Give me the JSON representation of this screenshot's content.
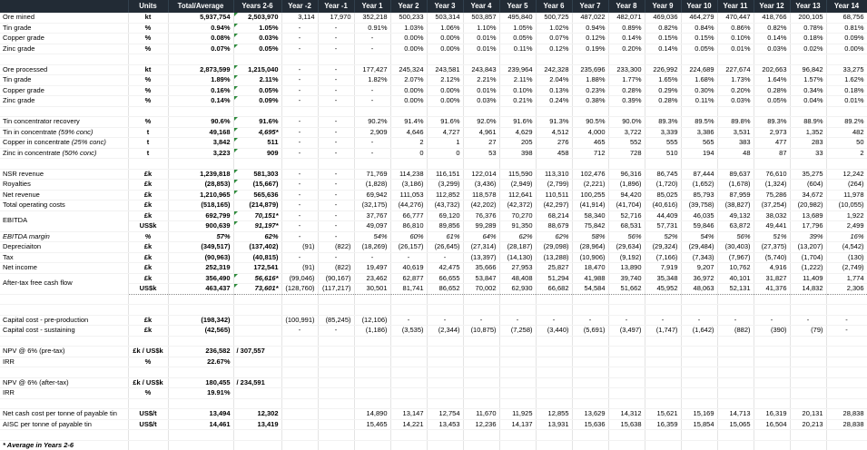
{
  "sheet": {
    "colors": {
      "header_bg": "#222B35",
      "header_text": "#FFFFFF",
      "flag_green": "#2E8B3C",
      "grid_line": "#E4E4E4",
      "dotted_line": "#8A8A8A"
    },
    "columns": [
      "Units",
      "Total/Average",
      "Years 2-6",
      "Year -2",
      "Year -1",
      "Year 1",
      "Year 2",
      "Year 3",
      "Year 4",
      "Year 5",
      "Year 6",
      "Year 7",
      "Year 8",
      "Year 9",
      "Year 10",
      "Year 11",
      "Year 12",
      "Year 13",
      "Year 14"
    ],
    "footnote": "* Average in Years 2-6",
    "rows": [
      {
        "name": "ore-mined",
        "label": "Ore mined",
        "unit": "kt",
        "total": "5,937,754",
        "y26": "2,503,970",
        "flag": 1,
        "vals": [
          "3,114",
          "17,970",
          "352,218",
          "500,233",
          "503,314",
          "503,857",
          "495,840",
          "500,725",
          "487,022",
          "482,071",
          "469,036",
          "464,279",
          "470,447",
          "418,766",
          "200,105",
          "68,756"
        ]
      },
      {
        "name": "tin-grade-mined",
        "label": "Tin grade",
        "unit": "%",
        "total": "0.94%",
        "y26": "1.05%",
        "flag": 1,
        "vals": [
          "-",
          "-",
          "0.91%",
          "1.03%",
          "1.06%",
          "1.10%",
          "1.05%",
          "1.02%",
          "0.94%",
          "0.89%",
          "0.82%",
          "0.84%",
          "0.86%",
          "0.82%",
          "0.78%",
          "0.81%"
        ]
      },
      {
        "name": "copper-grade-mined",
        "label": "Copper grade",
        "unit": "%",
        "total": "0.08%",
        "y26": "0.03%",
        "flag": 1,
        "vals": [
          "-",
          "-",
          "-",
          "0.00%",
          "0.00%",
          "0.01%",
          "0.05%",
          "0.07%",
          "0.12%",
          "0.14%",
          "0.15%",
          "0.15%",
          "0.10%",
          "0.14%",
          "0.18%",
          "0.09%"
        ]
      },
      {
        "name": "zinc-grade-mined",
        "label": "Zinc grade",
        "unit": "%",
        "total": "0.07%",
        "y26": "0.05%",
        "flag": 1,
        "vals": [
          "-",
          "-",
          "-",
          "0.00%",
          "0.00%",
          "0.01%",
          "0.11%",
          "0.12%",
          "0.19%",
          "0.20%",
          "0.14%",
          "0.05%",
          "0.01%",
          "0.03%",
          "0.02%",
          "0.00%"
        ]
      },
      {
        "name": "spacer-1"
      },
      {
        "name": "ore-processed",
        "label": "Ore processed",
        "unit": "kt",
        "total": "2,873,599",
        "y26": "1,215,040",
        "flag": 1,
        "vals": [
          "-",
          "-",
          "177,427",
          "245,324",
          "243,581",
          "243,843",
          "239,964",
          "242,328",
          "235,696",
          "233,300",
          "226,992",
          "224,689",
          "227,674",
          "202,663",
          "96,842",
          "33,275"
        ]
      },
      {
        "name": "tin-grade-processed",
        "label": "Tin grade",
        "unit": "%",
        "total": "1.89%",
        "y26": "2.11%",
        "flag": 1,
        "vals": [
          "-",
          "-",
          "1.82%",
          "2.07%",
          "2.12%",
          "2.21%",
          "2.11%",
          "2.04%",
          "1.88%",
          "1.77%",
          "1.65%",
          "1.68%",
          "1.73%",
          "1.64%",
          "1.57%",
          "1.62%"
        ]
      },
      {
        "name": "copper-grade-processed",
        "label": "Copper grade",
        "unit": "%",
        "total": "0.16%",
        "y26": "0.05%",
        "flag": 1,
        "vals": [
          "-",
          "-",
          "-",
          "0.00%",
          "0.00%",
          "0.01%",
          "0.10%",
          "0.13%",
          "0.23%",
          "0.28%",
          "0.29%",
          "0.30%",
          "0.20%",
          "0.28%",
          "0.34%",
          "0.18%"
        ]
      },
      {
        "name": "zinc-grade-processed",
        "label": "Zinc grade",
        "unit": "%",
        "total": "0.14%",
        "y26": "0.09%",
        "flag": 1,
        "vals": [
          "-",
          "-",
          "-",
          "0.00%",
          "0.00%",
          "0.03%",
          "0.21%",
          "0.24%",
          "0.38%",
          "0.39%",
          "0.28%",
          "0.11%",
          "0.03%",
          "0.05%",
          "0.04%",
          "0.01%"
        ]
      },
      {
        "name": "spacer-2"
      },
      {
        "name": "tin-concentrator-recovery",
        "label": "Tin concentrator recovery",
        "unit": "%",
        "total": "90.6%",
        "y26": "91.6%",
        "flag": 1,
        "vals": [
          "-",
          "-",
          "90.2%",
          "91.4%",
          "91.6%",
          "92.0%",
          "91.6%",
          "91.3%",
          "90.5%",
          "90.0%",
          "89.3%",
          "89.5%",
          "89.8%",
          "89.3%",
          "88.9%",
          "89.2%"
        ]
      },
      {
        "name": "tin-in-concentrate",
        "label": "Tin in concentrate",
        "suffix": "(59% conc)",
        "unit": "t",
        "total": "49,168",
        "y26": "4,695*",
        "y26i": 1,
        "flag": 1,
        "vals": [
          "-",
          "-",
          "2,909",
          "4,646",
          "4,727",
          "4,961",
          "4,629",
          "4,512",
          "4,000",
          "3,722",
          "3,339",
          "3,386",
          "3,531",
          "2,973",
          "1,352",
          "482"
        ]
      },
      {
        "name": "copper-in-concentrate",
        "label": "Copper in concentrate",
        "suffix": "(25% conc)",
        "unit": "t",
        "total": "3,842",
        "y26": "511",
        "flag": 1,
        "vals": [
          "-",
          "-",
          "-",
          "2",
          "1",
          "27",
          "205",
          "276",
          "465",
          "552",
          "555",
          "565",
          "383",
          "477",
          "283",
          "50"
        ]
      },
      {
        "name": "zinc-in-concentrate",
        "label": "Zinc in concentrate",
        "suffix": "(50% conc)",
        "unit": "t",
        "total": "3,223",
        "y26": "909",
        "flag": 1,
        "vals": [
          "-",
          "-",
          "-",
          "0",
          "0",
          "53",
          "398",
          "458",
          "712",
          "728",
          "510",
          "194",
          "48",
          "87",
          "33",
          "2"
        ]
      },
      {
        "name": "spacer-3"
      },
      {
        "name": "nsr-revenue",
        "label": "NSR revenue",
        "unit": "£k",
        "total": "1,239,818",
        "y26": "581,303",
        "flag": 1,
        "vals": [
          "-",
          "-",
          "71,769",
          "114,238",
          "116,151",
          "122,014",
          "115,590",
          "113,310",
          "102,476",
          "96,316",
          "86,745",
          "87,444",
          "89,637",
          "76,610",
          "35,275",
          "12,242"
        ]
      },
      {
        "name": "royalties",
        "label": "Royalties",
        "unit": "£k",
        "total": "(28,853)",
        "y26": "(15,667)",
        "flag": 1,
        "vals": [
          "-",
          "-",
          "(1,828)",
          "(3,186)",
          "(3,299)",
          "(3,436)",
          "(2,949)",
          "(2,799)",
          "(2,221)",
          "(1,896)",
          "(1,720)",
          "(1,652)",
          "(1,678)",
          "(1,324)",
          "(604)",
          "(264)"
        ]
      },
      {
        "name": "net-revenue",
        "label": "Net revenue",
        "unit": "£k",
        "total": "1,210,965",
        "y26": "565,636",
        "flag": 1,
        "vals": [
          "-",
          "-",
          "69,942",
          "111,053",
          "112,852",
          "118,578",
          "112,641",
          "110,511",
          "100,255",
          "94,420",
          "85,025",
          "85,793",
          "87,959",
          "75,286",
          "34,672",
          "11,978"
        ]
      },
      {
        "name": "total-operating-costs",
        "label": "Total operating costs",
        "unit": "£k",
        "total": "(518,165)",
        "y26": "(214,879)",
        "vals": [
          "-",
          "-",
          "(32,175)",
          "(44,276)",
          "(43,732)",
          "(42,202)",
          "(42,372)",
          "(42,297)",
          "(41,914)",
          "(41,704)",
          "(40,616)",
          "(39,758)",
          "(38,827)",
          "(37,254)",
          "(20,982)",
          "(10,055)"
        ]
      },
      {
        "name": "ebitda-gbp",
        "label": "EBITDA",
        "span": 2,
        "unit": "£k",
        "total": "692,799",
        "y26": "70,151*",
        "y26i": 1,
        "flag": 1,
        "cls": "dt",
        "vals": [
          "-",
          "-",
          "37,767",
          "66,777",
          "69,120",
          "76,376",
          "70,270",
          "68,214",
          "58,340",
          "52,716",
          "44,409",
          "46,035",
          "49,132",
          "38,032",
          "13,689",
          "1,922"
        ]
      },
      {
        "name": "ebitda-usd",
        "skip": 1,
        "unit": "US$k",
        "total": "900,639",
        "y26": "91,197*",
        "y26i": 1,
        "flag": 1,
        "vals": [
          "-",
          "-",
          "49,097",
          "86,810",
          "89,856",
          "99,289",
          "91,350",
          "88,679",
          "75,842",
          "68,531",
          "57,731",
          "59,846",
          "63,872",
          "49,441",
          "17,796",
          "2,499"
        ]
      },
      {
        "name": "ebitda-margin",
        "label": "EBITDA margin",
        "unit": "%",
        "italic": 1,
        "total": "57%",
        "y26": "62%",
        "vals": [
          "-",
          "-",
          "54%",
          "60%",
          "61%",
          "64%",
          "62%",
          "62%",
          "58%",
          "56%",
          "52%",
          "54%",
          "56%",
          "51%",
          "39%",
          "16%"
        ]
      },
      {
        "name": "depreciation",
        "label": "Depreciaiton",
        "unit": "£k",
        "total": "(349,517)",
        "y26": "(137,402)",
        "cls": "dt",
        "vals": [
          "(91)",
          "(822)",
          "(18,269)",
          "(26,157)",
          "(26,645)",
          "(27,314)",
          "(28,187)",
          "(29,098)",
          "(28,964)",
          "(29,634)",
          "(29,324)",
          "(29,484)",
          "(30,403)",
          "(27,375)",
          "(13,207)",
          "(4,542)"
        ]
      },
      {
        "name": "tax",
        "label": "Tax",
        "unit": "£k",
        "total": "(90,963)",
        "y26": "(40,815)",
        "vals": [
          "-",
          "-",
          "-",
          "-",
          "-",
          "(13,397)",
          "(14,130)",
          "(13,288)",
          "(10,906)",
          "(9,192)",
          "(7,166)",
          "(7,343)",
          "(7,967)",
          "(5,740)",
          "(1,704)",
          "(130)"
        ]
      },
      {
        "name": "net-income",
        "label": "Net income",
        "unit": "£k",
        "total": "252,319",
        "y26": "172,541",
        "vals": [
          "(91)",
          "(822)",
          "19,497",
          "40,619",
          "42,475",
          "35,666",
          "27,953",
          "25,827",
          "18,470",
          "13,890",
          "7,919",
          "9,207",
          "10,762",
          "4,916",
          "(1,222)",
          "(2,749)"
        ]
      },
      {
        "name": "after-tax-fcf-gbp",
        "label": "After-tax free cash flow",
        "span": 2,
        "unit": "£k",
        "total": "356,490",
        "y26": "56,616*",
        "y26i": 1,
        "flag": 1,
        "cls": "dt",
        "vals": [
          "(99,046)",
          "(90,167)",
          "23,462",
          "62,877",
          "66,655",
          "53,847",
          "48,408",
          "51,294",
          "41,988",
          "39,740",
          "35,348",
          "36,972",
          "40,101",
          "31,827",
          "11,409",
          "1,774"
        ]
      },
      {
        "name": "after-tax-fcf-usd",
        "skip": 1,
        "unit": "US$k",
        "total": "463,437",
        "y26": "73,601*",
        "y26i": 1,
        "flag": 1,
        "cls": "db",
        "vals": [
          "(128,760)",
          "(117,217)",
          "30,501",
          "81,741",
          "86,652",
          "70,002",
          "62,930",
          "66,682",
          "54,584",
          "51,662",
          "45,952",
          "48,063",
          "52,131",
          "41,376",
          "14,832",
          "2,306"
        ]
      },
      {
        "name": "spacer-4"
      },
      {
        "name": "spacer-5"
      },
      {
        "name": "capex-pre-production",
        "label": "Capital cost - pre-production",
        "unit": "£k",
        "total": "(198,342)",
        "y26": "",
        "vals": [
          "(100,991)",
          "(85,245)",
          "(12,106)",
          "-",
          "-",
          "-",
          "-",
          "-",
          "-",
          "-",
          "-",
          "-",
          "-",
          "-",
          "-",
          "-"
        ]
      },
      {
        "name": "capex-sustaining",
        "label": "Capital cost - sustaining",
        "unit": "£k",
        "total": "(42,565)",
        "y26": "",
        "vals": [
          "-",
          "-",
          "(1,186)",
          "(3,535)",
          "(2,344)",
          "(10,875)",
          "(7,258)",
          "(3,440)",
          "(5,691)",
          "(3,497)",
          "(1,747)",
          "(1,642)",
          "(882)",
          "(390)",
          "(79)",
          "-"
        ]
      },
      {
        "name": "spacer-6"
      },
      {
        "name": "npv-pre-tax",
        "label": "NPV @ 6% (pre-tax)",
        "unit": "£k / US$k",
        "total": "236,582",
        "y26": "/ 307,557",
        "y26left": 1
      },
      {
        "name": "irr-pre-tax",
        "label": "IRR",
        "unit": "%",
        "total": "22.67%",
        "y26": ""
      },
      {
        "name": "spacer-7"
      },
      {
        "name": "npv-after-tax",
        "label": "NPV @ 6% (after-tax)",
        "unit": "£k / US$k",
        "total": "180,455",
        "y26": "/ 234,591",
        "y26left": 1
      },
      {
        "name": "irr-after-tax",
        "label": "IRR",
        "unit": "%",
        "total": "19.91%",
        "y26": ""
      },
      {
        "name": "spacer-8"
      },
      {
        "name": "net-cash-cost",
        "label": "Net cash cost per tonne of payable tin",
        "unit": "US$/t",
        "total": "13,494",
        "y26": "12,302",
        "vals": [
          "",
          "",
          "14,890",
          "13,147",
          "12,754",
          "11,670",
          "11,925",
          "12,855",
          "13,629",
          "14,312",
          "15,621",
          "15,169",
          "14,713",
          "16,319",
          "20,131",
          "28,838"
        ]
      },
      {
        "name": "aisc",
        "label": "AISC per tonne of payable tin",
        "unit": "US$/t",
        "total": "14,461",
        "y26": "13,419",
        "vals": [
          "",
          "",
          "15,465",
          "14,221",
          "13,453",
          "12,236",
          "14,137",
          "13,931",
          "15,636",
          "15,638",
          "16,359",
          "15,854",
          "15,065",
          "16,504",
          "20,213",
          "28,838"
        ]
      },
      {
        "name": "spacer-9"
      },
      {
        "name": "footnote",
        "label": "* Average in Years 2-6",
        "fn": 1
      }
    ]
  }
}
